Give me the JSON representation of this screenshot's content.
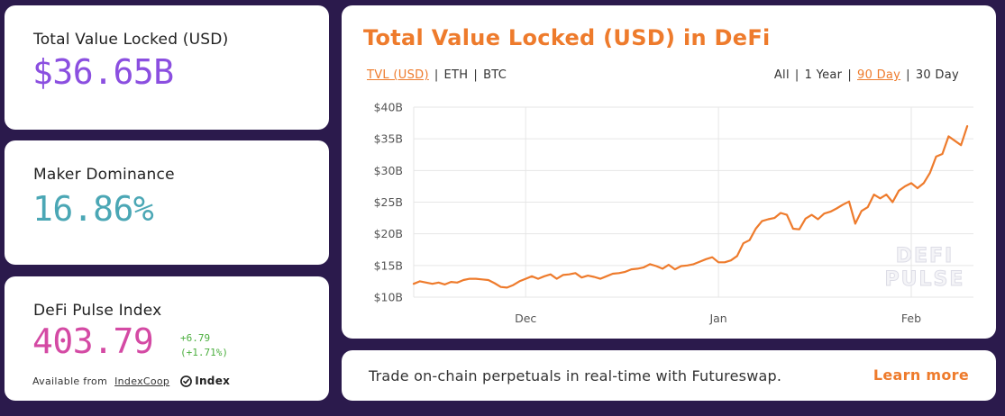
{
  "stats": {
    "tvl": {
      "label": "Total Value Locked (USD)",
      "value": "$36.65B"
    },
    "maker": {
      "label": "Maker Dominance",
      "value": "16.86%"
    },
    "index": {
      "label": "DeFi Pulse Index",
      "value": "403.79",
      "change_abs": "+6.79",
      "change_pct": "(+1.71%)",
      "source_prefix": "Available from",
      "source_link": "IndexCoop",
      "logo_text": "Index"
    }
  },
  "chart": {
    "title": "Total Value Locked (USD) in DeFi",
    "currency_tabs": [
      {
        "label": "TVL (USD)",
        "active": true
      },
      {
        "label": "ETH",
        "active": false
      },
      {
        "label": "BTC",
        "active": false
      }
    ],
    "range_tabs": [
      {
        "label": "All",
        "active": false
      },
      {
        "label": "1 Year",
        "active": false
      },
      {
        "label": "90 Day",
        "active": true
      },
      {
        "label": "30 Day",
        "active": false
      }
    ],
    "separator": "|",
    "watermark_line1": "DEFI",
    "watermark_line2": "PULSE",
    "colors": {
      "line": "#ee7b2c",
      "grid": "#e6e6e6",
      "axis_text": "#555555"
    }
  },
  "chart_data": {
    "type": "line",
    "title": "Total Value Locked (USD) in DeFi",
    "xlabel": "",
    "ylabel": "",
    "y_ticks": [
      "$10B",
      "$15B",
      "$20B",
      "$25B",
      "$30B",
      "$35B",
      "$40B"
    ],
    "y_tick_values": [
      10,
      15,
      20,
      25,
      30,
      35,
      40
    ],
    "ylim": [
      10,
      40
    ],
    "x_ticks": [
      {
        "label": "Dec",
        "day": 18
      },
      {
        "label": "Jan",
        "day": 49
      },
      {
        "label": "Feb",
        "day": 80
      }
    ],
    "xlim": [
      0,
      90
    ],
    "grid": true,
    "legend": "none",
    "series": [
      {
        "values": [
          [
            0,
            12.1
          ],
          [
            1,
            12.5
          ],
          [
            2,
            12.3
          ],
          [
            3,
            12.1
          ],
          [
            4,
            12.3
          ],
          [
            5,
            12.0
          ],
          [
            6,
            12.4
          ],
          [
            7,
            12.3
          ],
          [
            8,
            12.7
          ],
          [
            9,
            12.9
          ],
          [
            10,
            12.9
          ],
          [
            11,
            12.8
          ],
          [
            12,
            12.7
          ],
          [
            13,
            12.2
          ],
          [
            14,
            11.6
          ],
          [
            15,
            11.5
          ],
          [
            16,
            11.9
          ],
          [
            17,
            12.5
          ],
          [
            18,
            12.9
          ],
          [
            19,
            13.3
          ],
          [
            20,
            12.9
          ],
          [
            21,
            13.3
          ],
          [
            22,
            13.6
          ],
          [
            23,
            12.9
          ],
          [
            24,
            13.5
          ],
          [
            25,
            13.6
          ],
          [
            26,
            13.8
          ],
          [
            27,
            13.1
          ],
          [
            28,
            13.4
          ],
          [
            29,
            13.2
          ],
          [
            30,
            12.9
          ],
          [
            31,
            13.3
          ],
          [
            32,
            13.7
          ],
          [
            33,
            13.8
          ],
          [
            34,
            14.0
          ],
          [
            35,
            14.4
          ],
          [
            36,
            14.5
          ],
          [
            37,
            14.7
          ],
          [
            38,
            15.2
          ],
          [
            39,
            14.9
          ],
          [
            40,
            14.5
          ],
          [
            41,
            15.1
          ],
          [
            42,
            14.4
          ],
          [
            43,
            14.9
          ],
          [
            44,
            15.0
          ],
          [
            45,
            15.2
          ],
          [
            46,
            15.6
          ],
          [
            47,
            16.0
          ],
          [
            48,
            16.3
          ],
          [
            49,
            15.5
          ],
          [
            50,
            15.5
          ],
          [
            51,
            15.8
          ],
          [
            52,
            16.5
          ],
          [
            53,
            18.5
          ],
          [
            54,
            19.0
          ],
          [
            55,
            20.8
          ],
          [
            56,
            22.0
          ],
          [
            57,
            22.3
          ],
          [
            58,
            22.5
          ],
          [
            59,
            23.3
          ],
          [
            60,
            23.0
          ],
          [
            61,
            20.8
          ],
          [
            62,
            20.7
          ],
          [
            63,
            22.4
          ],
          [
            64,
            23.0
          ],
          [
            65,
            22.3
          ],
          [
            66,
            23.2
          ],
          [
            67,
            23.5
          ],
          [
            68,
            24.0
          ],
          [
            69,
            24.6
          ],
          [
            70,
            25.1
          ],
          [
            71,
            21.6
          ],
          [
            72,
            23.6
          ],
          [
            73,
            24.2
          ],
          [
            74,
            26.2
          ],
          [
            75,
            25.6
          ],
          [
            76,
            26.2
          ],
          [
            77,
            25.0
          ],
          [
            78,
            26.8
          ],
          [
            79,
            27.5
          ],
          [
            80,
            28.0
          ],
          [
            81,
            27.2
          ],
          [
            82,
            28.0
          ],
          [
            83,
            29.6
          ],
          [
            84,
            32.2
          ],
          [
            85,
            32.6
          ],
          [
            86,
            35.4
          ],
          [
            87,
            34.7
          ],
          [
            88,
            34.0
          ],
          [
            89,
            37.0
          ]
        ]
      }
    ]
  },
  "promo": {
    "text": "Trade on-chain perpetuals in real-time with Futureswap.",
    "link": "Learn more"
  }
}
